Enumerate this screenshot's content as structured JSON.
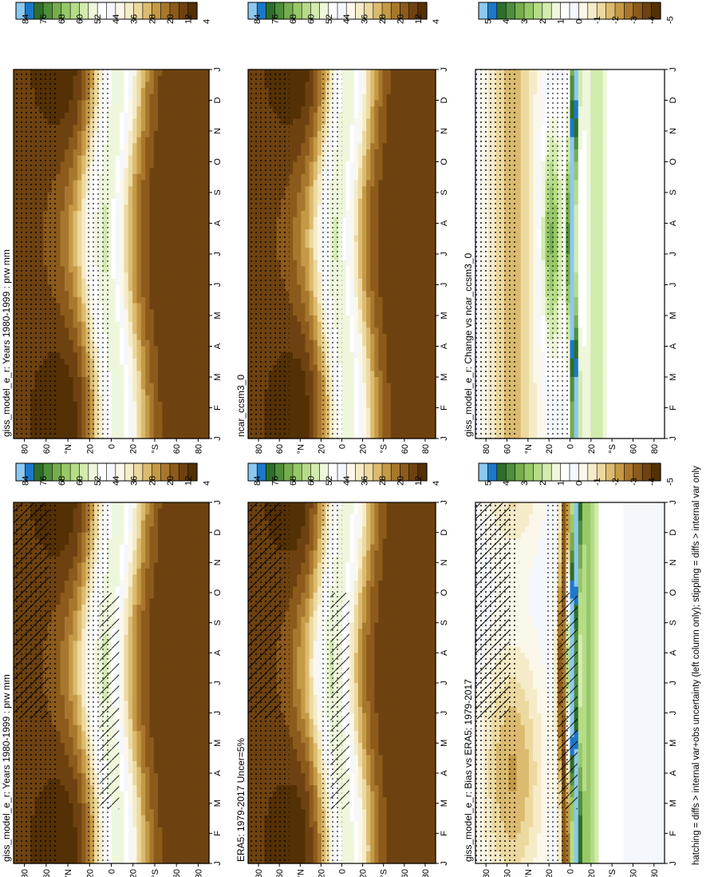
{
  "figure": {
    "footnote": "hatching = diffs > internal var+obs uncertainty (left column only); stippling = diffs > internal var only",
    "months": [
      "J",
      "F",
      "M",
      "A",
      "M",
      "J",
      "J",
      "A",
      "S",
      "O",
      "N",
      "D",
      "J"
    ],
    "lat_labels": [
      "80",
      "60",
      "°N",
      "20",
      "0",
      "20",
      "°S",
      "60",
      "80"
    ]
  },
  "chart_data": [
    {
      "type": "heatmap",
      "panel": "left-top",
      "title": "giss_model_e_r: Years 1980-1999 : prw mm",
      "colorbar_ticks": [
        "84",
        "76",
        "68",
        "60",
        "52",
        "44",
        "36",
        "28",
        "20",
        "12",
        "4"
      ],
      "pattern": "mean",
      "hatching": true,
      "stippling": true,
      "shift": 0
    },
    {
      "type": "heatmap",
      "panel": "right-top",
      "title": "giss_model_e_r: Years 1980-1999 : prw mm",
      "colorbar_ticks": [
        "84",
        "76",
        "68",
        "60",
        "52",
        "44",
        "36",
        "28",
        "20",
        "12",
        "4"
      ],
      "pattern": "mean",
      "hatching": false,
      "stippling": true,
      "shift": 0
    },
    {
      "type": "heatmap",
      "panel": "left-middle",
      "title": "ERA5: 1979-2017 Uncer=5%",
      "colorbar_ticks": [
        "84",
        "76",
        "68",
        "60",
        "52",
        "44",
        "36",
        "28",
        "20",
        "12",
        "4"
      ],
      "pattern": "mean",
      "hatching": true,
      "stippling": true,
      "shift": 2
    },
    {
      "type": "heatmap",
      "panel": "right-middle",
      "title": "ncar_ccsm3_0",
      "colorbar_ticks": [
        "84",
        "76",
        "68",
        "60",
        "52",
        "44",
        "36",
        "28",
        "20",
        "12",
        "4"
      ],
      "pattern": "mean",
      "hatching": false,
      "stippling": true,
      "shift": -1
    },
    {
      "type": "heatmap",
      "panel": "left-bottom",
      "title": "giss_model_e_r: Bias vs ERA5: 1979-2017",
      "colorbar_ticks": [
        "5",
        "4",
        "3",
        "2",
        "1",
        "0",
        "-1",
        "-2",
        "-3",
        "-4",
        "-5"
      ],
      "pattern": "bias",
      "hatching": true,
      "stippling": true,
      "shift": 0
    },
    {
      "type": "heatmap",
      "panel": "right-bottom",
      "title": "giss_model_e_r: Change vs ncar_ccsm3_0",
      "colorbar_ticks": [
        "5",
        "4",
        "3",
        "2",
        "1",
        "0",
        "-1",
        "-2",
        "-3",
        "-4",
        "-5"
      ],
      "pattern": "change",
      "hatching": false,
      "stippling": true,
      "shift": 0
    }
  ],
  "colors": {
    "palette": [
      "#543005",
      "#6e4210",
      "#8c5a1a",
      "#a8772e",
      "#c59a45",
      "#dcbb70",
      "#ecd9a0",
      "#f5ebc8",
      "#fbf7ea",
      "#f4f7fb",
      "#ffffff",
      "#eef7dc",
      "#d2ebae",
      "#b6dc88",
      "#97c868",
      "#76ad4e",
      "#4f8e3b",
      "#2e6e2a",
      "#1c78c8",
      "#8cc8f0"
    ]
  }
}
